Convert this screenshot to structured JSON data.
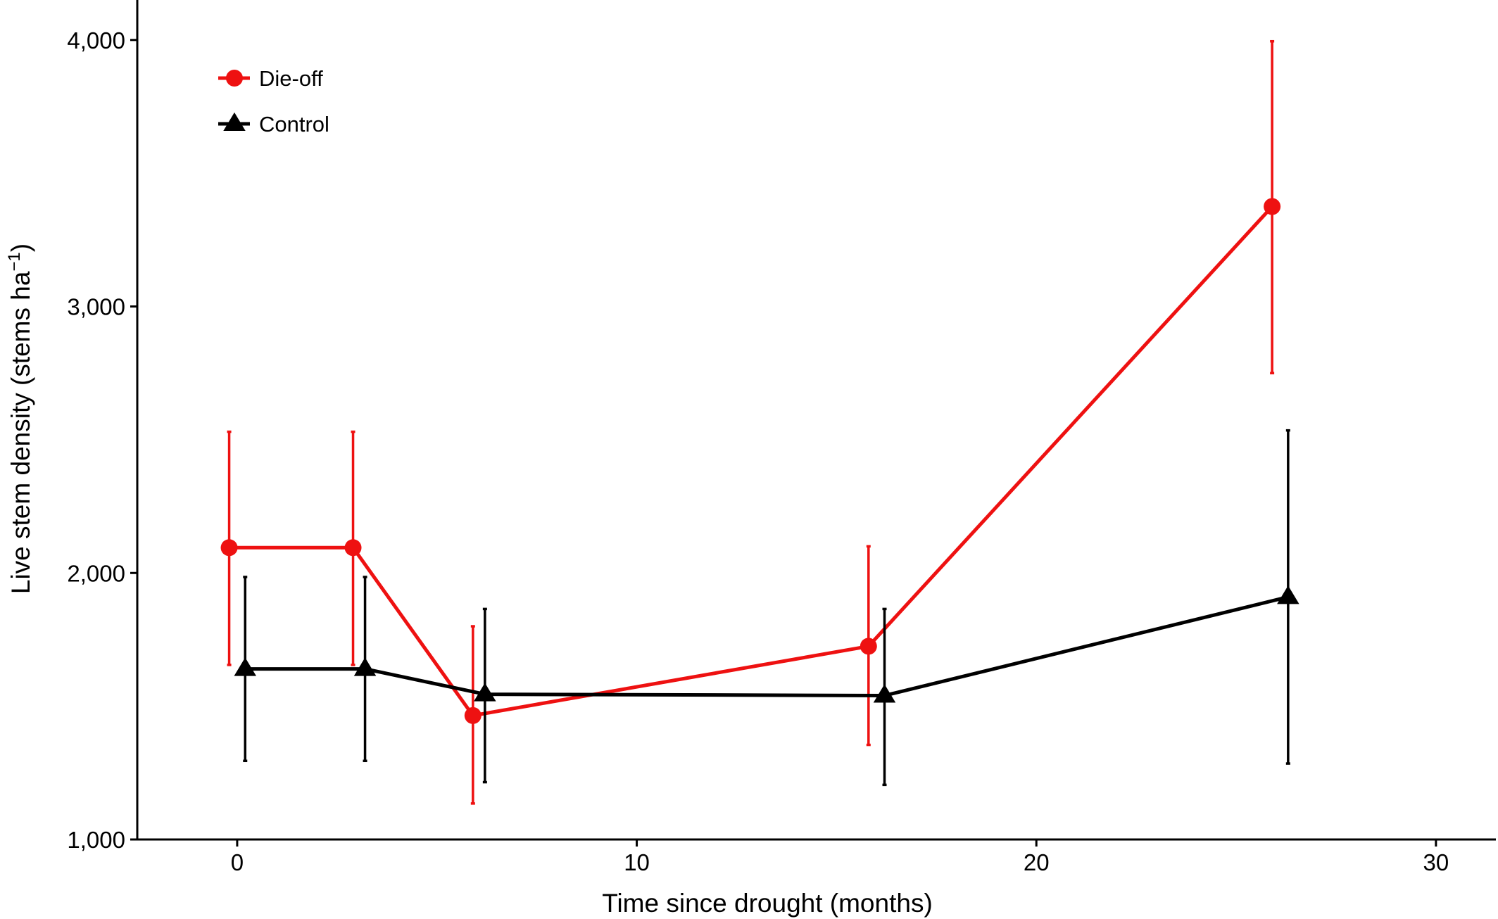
{
  "chart_data": {
    "type": "line",
    "xlabel": "Time since drought (months)",
    "ylabel": "Live stem density (stems ha",
    "ylabel_sup": "−1",
    "ylabel_close": ")",
    "xlim": [
      -2.5,
      31.5
    ],
    "ylim": [
      1000,
      4150
    ],
    "x_ticks": [
      0,
      10,
      20,
      30
    ],
    "x_tick_labels": [
      "0",
      "10",
      "20",
      "30"
    ],
    "y_ticks": [
      1000,
      2000,
      3000,
      4000
    ],
    "y_tick_labels": [
      "1,000",
      "2,000",
      "3,000",
      "4,000"
    ],
    "grid": false,
    "legend_position": "top-left",
    "series": [
      {
        "name": "Die-off",
        "color": "#ee1111",
        "marker": "circle",
        "x": [
          -0.2,
          2.9,
          5.9,
          15.8,
          25.9
        ],
        "y": [
          2095,
          2095,
          1465,
          1725,
          3375
        ],
        "y_low": [
          1655,
          1655,
          1135,
          1355,
          2750
        ],
        "y_high": [
          2530,
          2530,
          1800,
          2100,
          3995
        ]
      },
      {
        "name": "Control",
        "color": "#000000",
        "marker": "triangle",
        "x": [
          0.2,
          3.2,
          6.2,
          16.2,
          26.3
        ],
        "y": [
          1640,
          1640,
          1545,
          1540,
          1910
        ],
        "y_low": [
          1295,
          1295,
          1215,
          1205,
          1285
        ],
        "y_high": [
          1985,
          1985,
          1865,
          1865,
          2535
        ]
      }
    ]
  }
}
